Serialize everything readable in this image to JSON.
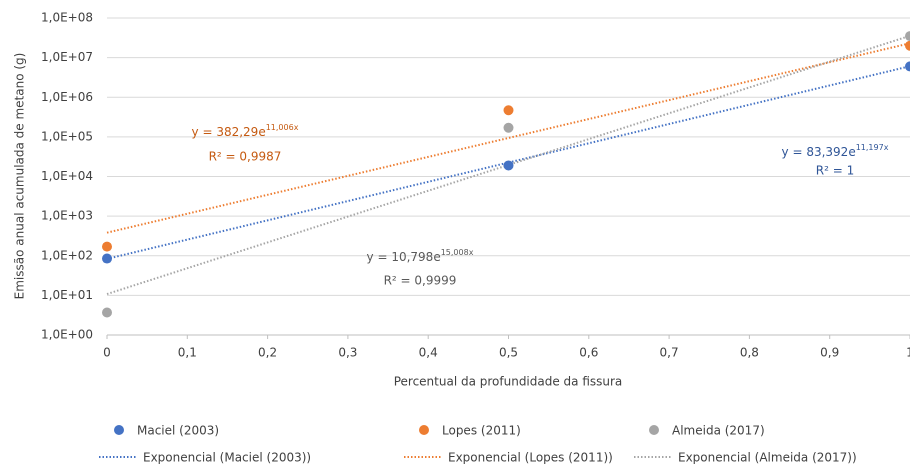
{
  "chart_data": {
    "type": "scatter",
    "x_label": "Percentual da profundidade da fissura",
    "y_label": "Emissão anual acumulada de metano (g)",
    "xlim": [
      0,
      1
    ],
    "xticks": [
      0,
      {
        "value": 0.1,
        "label": "0,1"
      },
      {
        "value": 0.2,
        "label": "0,2"
      },
      {
        "value": 0.3,
        "label": "0,3"
      },
      {
        "value": 0.4,
        "label": "0,4"
      },
      {
        "value": 0.5,
        "label": "0,5"
      },
      {
        "value": 0.6,
        "label": "0,6"
      },
      {
        "value": 0.7,
        "label": "0,7"
      },
      {
        "value": 0.8,
        "label": "0,8"
      },
      {
        "value": 0.9,
        "label": "0,9"
      },
      1
    ],
    "ylim": [
      1,
      100000000
    ],
    "y_log": true,
    "yticks": [
      {
        "value": 1,
        "label": "1,0E+00"
      },
      {
        "value": 10,
        "label": "1,0E+01"
      },
      {
        "value": 100,
        "label": "1,0E+02"
      },
      {
        "value": 1000,
        "label": "1,0E+03"
      },
      {
        "value": 10000,
        "label": "1,0E+04"
      },
      {
        "value": 100000,
        "label": "1,0E+05"
      },
      {
        "value": 1000000,
        "label": "1,0E+06"
      },
      {
        "value": 10000000,
        "label": "1,0E+07"
      },
      {
        "value": 100000000,
        "label": "1,0E+08"
      }
    ],
    "grid": true,
    "legend": "bottom",
    "series": [
      {
        "name": "Maciel (2003)",
        "color": "#4472c4",
        "x": [
          0,
          0.5,
          1
        ],
        "values": [
          85,
          19000,
          6000000
        ],
        "trendline": {
          "name": "Exponencial (Maciel (2003))",
          "a": 83.392,
          "b": 11.197,
          "text": "y = 83,392e",
          "exponent": "11,197x",
          "r2": "R² = 1",
          "text_color": "#2f5597"
        }
      },
      {
        "name": "Lopes (2011)",
        "color": "#ed7d31",
        "x": [
          0,
          0.5,
          1
        ],
        "values": [
          170,
          470000,
          20000000
        ],
        "trendline": {
          "name": "Exponencial (Lopes (2011))",
          "a": 382.29,
          "b": 11.006,
          "text": "y = 382,29e",
          "exponent": "11,006x",
          "r2": "R² = 0,9987",
          "text_color": "#c55a11"
        }
      },
      {
        "name": "Almeida (2017)",
        "color": "#a5a5a5",
        "x": [
          0,
          0.5,
          1
        ],
        "values": [
          3.7,
          170000,
          35000000
        ],
        "trendline": {
          "name": "Exponencial (Almeida (2017))",
          "a": 10.798,
          "b": 15.008,
          "text": "y = 10,798e",
          "exponent": "15,008x",
          "r2": "R² = 0,9999",
          "text_color": "#595959"
        }
      }
    ]
  }
}
